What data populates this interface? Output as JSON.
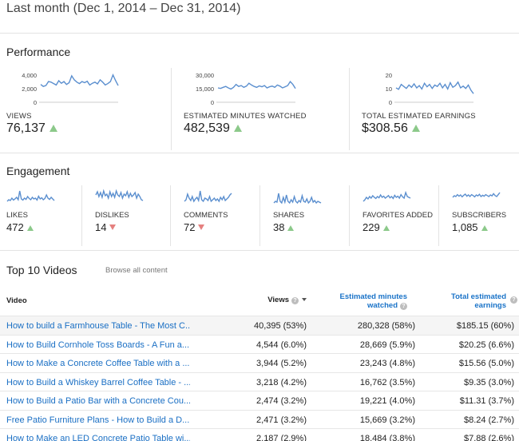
{
  "period": "Last month (Dec 1, 2014 – Dec 31, 2014)",
  "performance": {
    "title": "Performance",
    "cards": [
      {
        "label": "VIEWS",
        "value": "76,137",
        "axis": [
          "4,000",
          "2,000",
          "0"
        ],
        "points": [
          0.62,
          0.55,
          0.58,
          0.72,
          0.7,
          0.65,
          0.6,
          0.75,
          0.66,
          0.72,
          0.62,
          0.68,
          0.92,
          0.78,
          0.7,
          0.65,
          0.72,
          0.68,
          0.73,
          0.6,
          0.66,
          0.7,
          0.64,
          0.78,
          0.7,
          0.6,
          0.65,
          0.72,
          0.95,
          0.75,
          0.58
        ]
      },
      {
        "label": "ESTIMATED MINUTES WATCHED",
        "value": "482,539",
        "axis": [
          "30,000",
          "15,000",
          "0"
        ],
        "points": [
          0.5,
          0.48,
          0.52,
          0.55,
          0.5,
          0.46,
          0.52,
          0.62,
          0.55,
          0.58,
          0.52,
          0.56,
          0.66,
          0.6,
          0.55,
          0.52,
          0.57,
          0.54,
          0.58,
          0.5,
          0.54,
          0.56,
          0.52,
          0.6,
          0.56,
          0.5,
          0.54,
          0.58,
          0.72,
          0.62,
          0.48
        ]
      },
      {
        "label": "TOTAL ESTIMATED EARNINGS",
        "value": "$308.56",
        "axis": [
          "20",
          "10",
          "0"
        ],
        "points": [
          0.5,
          0.45,
          0.62,
          0.55,
          0.48,
          0.6,
          0.52,
          0.64,
          0.5,
          0.58,
          0.46,
          0.66,
          0.54,
          0.62,
          0.48,
          0.6,
          0.55,
          0.66,
          0.5,
          0.62,
          0.46,
          0.68,
          0.52,
          0.58,
          0.7,
          0.5,
          0.56,
          0.48,
          0.6,
          0.42,
          0.3
        ]
      }
    ]
  },
  "engagement": {
    "title": "Engagement",
    "cards": [
      {
        "label": "LIKES",
        "value": "472",
        "trend": "up",
        "points": [
          0.3,
          0.4,
          0.35,
          0.5,
          0.38,
          0.45,
          0.55,
          0.4,
          0.95,
          0.45,
          0.38,
          0.5,
          0.42,
          0.6,
          0.48,
          0.4,
          0.55,
          0.45,
          0.5,
          0.38,
          0.62,
          0.45,
          0.52,
          0.4,
          0.48,
          0.7,
          0.5,
          0.42,
          0.55,
          0.45,
          0.35
        ]
      },
      {
        "label": "DISLIKES",
        "value": "14",
        "trend": "down",
        "points": [
          0.7,
          0.9,
          0.6,
          0.85,
          0.55,
          0.95,
          0.65,
          0.75,
          0.5,
          0.9,
          0.6,
          0.8,
          0.55,
          0.95,
          0.7,
          0.6,
          0.85,
          0.5,
          0.75,
          0.65,
          0.9,
          0.55,
          0.8,
          0.6,
          0.7,
          0.85,
          0.5,
          0.75,
          0.6,
          0.4,
          0.35
        ]
      },
      {
        "label": "COMMENTS",
        "value": "72",
        "trend": "down",
        "points": [
          0.3,
          0.4,
          0.75,
          0.5,
          0.35,
          0.6,
          0.3,
          0.45,
          0.55,
          0.35,
          0.95,
          0.4,
          0.3,
          0.5,
          0.45,
          0.35,
          0.6,
          0.3,
          0.4,
          0.5,
          0.35,
          0.45,
          0.3,
          0.55,
          0.4,
          0.6,
          0.35,
          0.45,
          0.55,
          0.7,
          0.8
        ]
      },
      {
        "label": "SHARES",
        "value": "38",
        "trend": "up",
        "points": [
          0.2,
          0.3,
          0.25,
          0.8,
          0.3,
          0.2,
          0.55,
          0.25,
          0.7,
          0.3,
          0.2,
          0.4,
          0.25,
          0.6,
          0.3,
          0.2,
          0.35,
          0.25,
          0.65,
          0.3,
          0.25,
          0.45,
          0.2,
          0.3,
          0.55,
          0.25,
          0.35,
          0.2,
          0.3,
          0.25,
          0.2
        ]
      },
      {
        "label": "FAVORITES ADDED",
        "value": "229",
        "trend": "up",
        "points": [
          0.3,
          0.4,
          0.55,
          0.45,
          0.6,
          0.5,
          0.65,
          0.55,
          0.48,
          0.6,
          0.52,
          0.7,
          0.55,
          0.62,
          0.5,
          0.58,
          0.66,
          0.52,
          0.6,
          0.48,
          0.68,
          0.55,
          0.62,
          0.5,
          0.72,
          0.58,
          0.5,
          0.85,
          0.6,
          0.55,
          0.5
        ]
      },
      {
        "label": "SUBSCRIBERS",
        "value": "1,085",
        "trend": "up",
        "points": [
          0.55,
          0.65,
          0.6,
          0.72,
          0.62,
          0.7,
          0.58,
          0.68,
          0.75,
          0.62,
          0.7,
          0.6,
          0.72,
          0.66,
          0.58,
          0.7,
          0.64,
          0.74,
          0.6,
          0.68,
          0.62,
          0.72,
          0.66,
          0.6,
          0.7,
          0.64,
          0.78,
          0.66,
          0.6,
          0.72,
          0.85
        ]
      }
    ]
  },
  "top_videos": {
    "title": "Top 10 Videos",
    "browse_link": "Browse all content",
    "headers": {
      "video": "Video",
      "views": "Views",
      "minutes": [
        "Estimated minutes",
        "watched"
      ],
      "earnings": [
        "Total estimated",
        "earnings"
      ]
    },
    "rows": [
      {
        "title": "How to build a Farmhouse Table - The Most C...",
        "views": "40,395 (53%)",
        "minutes": "280,328 (58%)",
        "earnings": "$185.15 (60%)"
      },
      {
        "title": "How to Build Cornhole Toss Boards - A Fun a...",
        "views": "4,544 (6.0%)",
        "minutes": "28,669 (5.9%)",
        "earnings": "$20.25 (6.6%)"
      },
      {
        "title": "How to Make a Concrete Coffee Table with a ...",
        "views": "3,944 (5.2%)",
        "minutes": "23,243 (4.8%)",
        "earnings": "$15.56 (5.0%)"
      },
      {
        "title": "How to Build a Whiskey Barrel Coffee Table - ...",
        "views": "3,218 (4.2%)",
        "minutes": "16,762 (3.5%)",
        "earnings": "$9.35 (3.0%)"
      },
      {
        "title": "How to Build a Patio Bar with a Concrete Cou...",
        "views": "2,474 (3.2%)",
        "minutes": "19,221 (4.0%)",
        "earnings": "$11.31 (3.7%)"
      },
      {
        "title": "Free Patio Furniture Plans - How to Build a D...",
        "views": "2,471 (3.2%)",
        "minutes": "15,669 (3.2%)",
        "earnings": "$8.24 (2.7%)"
      },
      {
        "title": "How to Make an LED Concrete Patio Table wi...",
        "views": "2,187 (2.9%)",
        "minutes": "18,484 (3.8%)",
        "earnings": "$7.88 (2.6%)"
      }
    ]
  },
  "colors": {
    "line": "#5b8fcf",
    "up": "#8cc98a",
    "down": "#e5807f",
    "link": "#1a6fc4"
  }
}
